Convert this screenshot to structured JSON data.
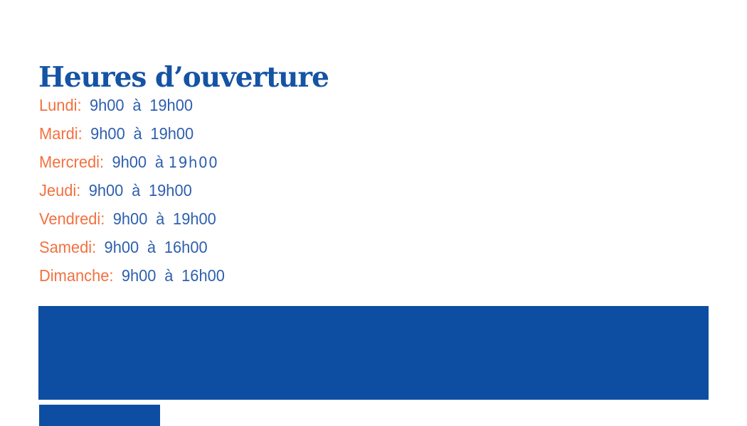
{
  "title": "Heures d’ouverture",
  "hours": {
    "items": [
      {
        "day": "Lundi:",
        "time": "9h00 à 19h00"
      },
      {
        "day": "Mardi:",
        "time": "9h00 à 19h00"
      },
      {
        "day": "Mercredi:",
        "time": "9h00 à",
        "time_alt": "19h00"
      },
      {
        "day": "Jeudi:",
        "time": "9h00 à 19h00"
      },
      {
        "day": "Vendredi:",
        "time": "9h00 à 19h00"
      },
      {
        "day": "Samedi:",
        "time": "9h00 à 16h00"
      },
      {
        "day": "Dimanche:",
        "time": "9h00 à 16h00"
      }
    ],
    "day_color": "#F2713F",
    "time_color": "#2E5FAE"
  },
  "decor": {
    "banner_color": "#0D4EA2",
    "title_color": "#1553A4",
    "background_color": "#FFFFFF"
  }
}
